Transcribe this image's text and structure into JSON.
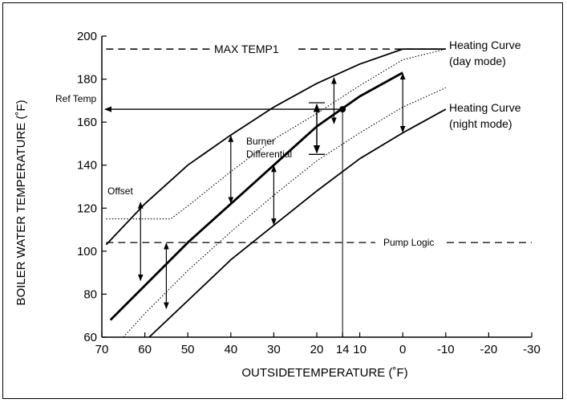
{
  "chart_data": {
    "type": "line",
    "xlabel": "OUTSIDETEMPERATURE (˚F)",
    "ylabel": "BOILER WATER TEMPERATURE (˚F)",
    "xlim": [
      70,
      -30
    ],
    "ylim": [
      60,
      200
    ],
    "x_ticks": [
      "70",
      "60",
      "50",
      "40",
      "30",
      "20",
      "14",
      "10",
      "0",
      "-10",
      "-20",
      "-30"
    ],
    "x_tick_values": [
      70,
      60,
      50,
      40,
      30,
      20,
      14,
      10,
      0,
      -10,
      -20,
      -30
    ],
    "y_ticks": [
      "60",
      "80",
      "100",
      "120",
      "140",
      "160",
      "180",
      "200"
    ],
    "y_tick_values": [
      60,
      80,
      100,
      120,
      140,
      160,
      180,
      200
    ],
    "grid": false,
    "series": [
      {
        "key": "day",
        "style": "thick",
        "x": [
          68,
          60,
          50,
          40,
          30,
          20,
          10,
          0
        ],
        "y": [
          68,
          84,
          104,
          122,
          140,
          158,
          172,
          183
        ]
      },
      {
        "key": "night",
        "style": "medium",
        "x": [
          59,
          50,
          40,
          30,
          20,
          10,
          0,
          -10
        ],
        "y": [
          60,
          77,
          96,
          112,
          128,
          143,
          155,
          166
        ]
      },
      {
        "key": "upper",
        "style": "medium",
        "x": [
          69,
          60,
          50,
          40,
          30,
          20,
          10,
          0,
          -10
        ],
        "y": [
          103,
          122,
          140,
          154,
          167,
          178,
          187,
          194,
          194
        ]
      },
      {
        "key": "offset_curve",
        "style": "dotted",
        "x": [
          69,
          54,
          50,
          40,
          30,
          20,
          10,
          0,
          -10
        ],
        "y": [
          115,
          115,
          121,
          137,
          152,
          164,
          177,
          189,
          194
        ]
      },
      {
        "key": "burner_lower",
        "style": "dotted",
        "x": [
          65,
          60,
          50,
          40,
          30,
          20,
          10,
          0,
          -10
        ],
        "y": [
          60,
          71,
          91,
          109,
          126,
          142,
          155,
          167,
          176
        ]
      }
    ],
    "reference_lines": [
      {
        "key": "max_temp",
        "y": 194,
        "x_range": [
          69,
          -10
        ],
        "label": "MAX TEMP1"
      },
      {
        "key": "pump_logic",
        "y": 104,
        "x_range": [
          69,
          -30
        ],
        "label": "Pump Logic"
      },
      {
        "key": "ref_temp",
        "y": 166,
        "x_range": [
          70,
          14
        ],
        "label": "Ref Temp"
      }
    ],
    "annotations": {
      "heating_day": [
        "Heating Curve",
        "(day mode)"
      ],
      "heating_night": [
        "Heating Curve",
        "(night mode)"
      ],
      "burner_differential": [
        "Burner",
        "Differential"
      ],
      "offset": "Offset"
    },
    "operating_point": {
      "x": 14,
      "y": 166
    },
    "burner_bracket": {
      "x": 20,
      "y_top": 169,
      "y_bottom": 145
    },
    "offset_arrows": [
      {
        "x": 61,
        "y_top": 123,
        "y_bottom": 86
      },
      {
        "x": 55,
        "y_top": 104,
        "y_bottom": 73
      },
      {
        "x": 40,
        "y_top": 154,
        "y_bottom": 122
      },
      {
        "x": 30,
        "y_top": 140,
        "y_bottom": 112
      },
      {
        "x": 16,
        "y_top": 181,
        "y_bottom": 159
      },
      {
        "x": 0,
        "y_top": 183,
        "y_bottom": 155
      }
    ]
  }
}
